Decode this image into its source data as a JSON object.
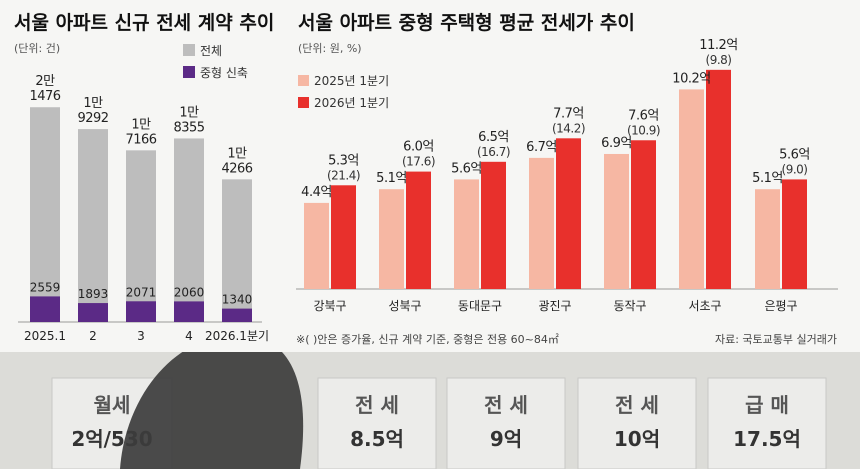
{
  "chart_data": [
    {
      "type": "bar",
      "title": "서울 아파트 신규 전세 계약 추이",
      "unit": "(단위: 건)",
      "categories": [
        "2025.1",
        "2",
        "3",
        "4",
        "2026.1분기"
      ],
      "series": [
        {
          "name": "전체",
          "color": "#bdbdbd",
          "values": [
            21476,
            19292,
            17166,
            18355,
            14266
          ],
          "labels": [
            [
              "2만",
              "1476"
            ],
            [
              "1만",
              "9292"
            ],
            [
              "1만",
              "7166"
            ],
            [
              "1만",
              "8355"
            ],
            [
              "1만",
              "4266"
            ]
          ]
        },
        {
          "name": "중형 신축",
          "color": "#5b2a86",
          "values": [
            2559,
            1893,
            2071,
            2060,
            1340
          ],
          "labels": [
            "2559",
            "1893",
            "2071",
            "2060",
            "1340"
          ]
        }
      ],
      "ylim": [
        0,
        22000
      ],
      "legend": "top-right"
    },
    {
      "type": "bar",
      "title": "서울 아파트 중형 주택형 평균 전세가 추이",
      "unit": "(단위: 원, %)",
      "categories": [
        "강북구",
        "성북구",
        "동대문구",
        "광진구",
        "동작구",
        "서초구",
        "은평구"
      ],
      "series": [
        {
          "name": "2025년 1분기",
          "color": "#f6b7a3",
          "values": [
            4.4,
            5.1,
            5.6,
            6.7,
            6.9,
            10.2,
            5.1
          ],
          "labels": [
            "4.4억",
            "5.1억",
            "5.6억",
            "6.7억",
            "6.9억",
            "10.2억",
            "5.1억"
          ]
        },
        {
          "name": "2026년 1분기",
          "color": "#e8302c",
          "values": [
            5.3,
            6.0,
            6.5,
            7.7,
            7.6,
            11.2,
            5.6
          ],
          "labels": [
            "5.3억",
            "6.0억",
            "6.5억",
            "7.7억",
            "7.6억",
            "11.2억",
            "5.6억"
          ],
          "growth_labels": [
            "(21.4)",
            "(17.6)",
            "(16.7)",
            "(14.2)",
            "(10.9)",
            "(9.8)",
            "(9.0)"
          ]
        }
      ],
      "ylim": [
        0,
        11.6
      ],
      "legend": "top-left"
    }
  ],
  "footnote": "※( )안은 증가율, 신규 계약 기준, 중형은 전용 60~84㎡",
  "source": "자료: 국토교통부 실거래가",
  "signs": [
    {
      "type": "월세",
      "price": "2억/530"
    },
    {
      "type": "전 세",
      "price": "8.5억"
    },
    {
      "type": "전 세",
      "price": "9억"
    },
    {
      "type": "전 세",
      "price": "10억"
    },
    {
      "type": "급 매",
      "price": "17.5억"
    }
  ]
}
